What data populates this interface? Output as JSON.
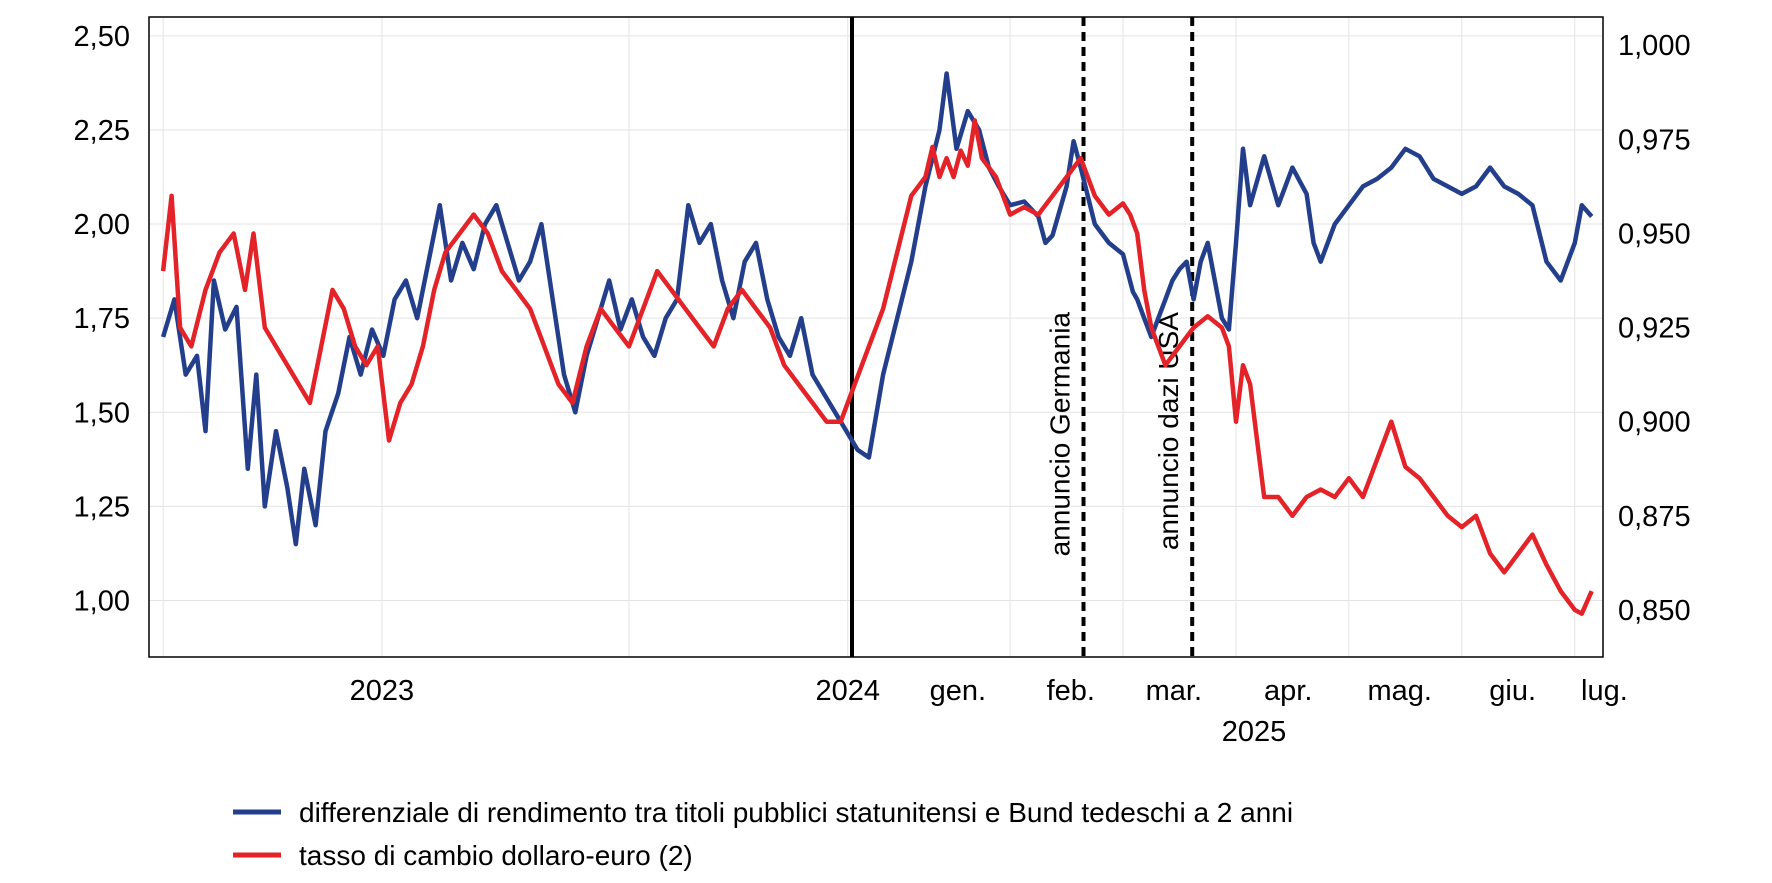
{
  "chart_data": {
    "type": "line",
    "y_left": {
      "ticks": [
        "1,00",
        "1,25",
        "1,50",
        "1,75",
        "2,00",
        "2,25",
        "2,50"
      ],
      "tick_values": [
        1.0,
        1.25,
        1.5,
        1.75,
        2.0,
        2.25,
        2.5
      ],
      "ylim": [
        0.85,
        2.55
      ]
    },
    "y_right": {
      "ticks": [
        "0,850",
        "0,875",
        "0,900",
        "0,925",
        "0,950",
        "0,975",
        "1,000"
      ],
      "tick_values": [
        0.85,
        0.875,
        0.9,
        0.925,
        0.95,
        0.975,
        1.0
      ],
      "ylim": [
        0.8375,
        1.0075
      ]
    },
    "x_ticks_weekly": [
      {
        "label": "2023",
        "pos": 0.155
      },
      {
        "label": "2024",
        "pos": 0.485
      }
    ],
    "x_ticks_daily": [
      {
        "label": "gen.",
        "pos": 0.563
      },
      {
        "label": "feb.",
        "pos": 0.643
      },
      {
        "label": "mar.",
        "pos": 0.716
      },
      {
        "label": "apr.",
        "pos": 0.797
      },
      {
        "label": "mag.",
        "pos": 0.876
      },
      {
        "label": "giu.",
        "pos": 0.956
      },
      {
        "label": "lug.",
        "pos": 1.021
      }
    ],
    "x_year_label": "2025",
    "annotations": [
      {
        "label": "annuncio Germania",
        "pos": 0.652
      },
      {
        "label": "annuncio dazi USA",
        "pos": 0.729
      }
    ],
    "section_break_pos": 0.488,
    "x_domain": [
      -0.01,
      1.02
    ],
    "series": [
      {
        "name": "differenziale di rendimento tra titoli pubblici statunitensi e Bund tedeschi a 2 anni",
        "axis": "left",
        "color": "#233e8b",
        "points": [
          [
            0.0,
            1.7
          ],
          [
            0.008,
            1.8
          ],
          [
            0.016,
            1.6
          ],
          [
            0.024,
            1.65
          ],
          [
            0.03,
            1.45
          ],
          [
            0.036,
            1.85
          ],
          [
            0.044,
            1.72
          ],
          [
            0.052,
            1.78
          ],
          [
            0.06,
            1.35
          ],
          [
            0.066,
            1.6
          ],
          [
            0.072,
            1.25
          ],
          [
            0.08,
            1.45
          ],
          [
            0.088,
            1.3
          ],
          [
            0.094,
            1.15
          ],
          [
            0.1,
            1.35
          ],
          [
            0.108,
            1.2
          ],
          [
            0.115,
            1.45
          ],
          [
            0.124,
            1.55
          ],
          [
            0.132,
            1.7
          ],
          [
            0.14,
            1.6
          ],
          [
            0.148,
            1.72
          ],
          [
            0.156,
            1.65
          ],
          [
            0.164,
            1.8
          ],
          [
            0.172,
            1.85
          ],
          [
            0.18,
            1.75
          ],
          [
            0.188,
            1.9
          ],
          [
            0.196,
            2.05
          ],
          [
            0.204,
            1.85
          ],
          [
            0.212,
            1.95
          ],
          [
            0.22,
            1.88
          ],
          [
            0.228,
            2.0
          ],
          [
            0.236,
            2.05
          ],
          [
            0.244,
            1.95
          ],
          [
            0.252,
            1.85
          ],
          [
            0.26,
            1.9
          ],
          [
            0.268,
            2.0
          ],
          [
            0.276,
            1.8
          ],
          [
            0.284,
            1.6
          ],
          [
            0.292,
            1.5
          ],
          [
            0.3,
            1.65
          ],
          [
            0.308,
            1.75
          ],
          [
            0.316,
            1.85
          ],
          [
            0.324,
            1.72
          ],
          [
            0.332,
            1.8
          ],
          [
            0.34,
            1.7
          ],
          [
            0.348,
            1.65
          ],
          [
            0.356,
            1.75
          ],
          [
            0.364,
            1.8
          ],
          [
            0.372,
            2.05
          ],
          [
            0.38,
            1.95
          ],
          [
            0.388,
            2.0
          ],
          [
            0.396,
            1.85
          ],
          [
            0.404,
            1.75
          ],
          [
            0.412,
            1.9
          ],
          [
            0.42,
            1.95
          ],
          [
            0.428,
            1.8
          ],
          [
            0.436,
            1.7
          ],
          [
            0.444,
            1.65
          ],
          [
            0.452,
            1.75
          ],
          [
            0.46,
            1.6
          ],
          [
            0.468,
            1.55
          ],
          [
            0.476,
            1.5
          ],
          [
            0.484,
            1.45
          ],
          [
            0.492,
            1.4
          ],
          [
            0.5,
            1.38
          ],
          [
            0.51,
            1.6
          ],
          [
            0.52,
            1.75
          ],
          [
            0.53,
            1.9
          ],
          [
            0.54,
            2.1
          ],
          [
            0.55,
            2.25
          ],
          [
            0.555,
            2.4
          ],
          [
            0.562,
            2.2
          ],
          [
            0.57,
            2.3
          ],
          [
            0.578,
            2.25
          ],
          [
            0.585,
            2.15
          ],
          [
            0.592,
            2.1
          ],
          [
            0.6,
            2.05
          ],
          [
            0.61,
            2.06
          ],
          [
            0.62,
            2.02
          ],
          [
            0.625,
            1.95
          ],
          [
            0.63,
            1.97
          ],
          [
            0.64,
            2.1
          ],
          [
            0.645,
            2.22
          ],
          [
            0.65,
            2.15
          ],
          [
            0.66,
            2.0
          ],
          [
            0.67,
            1.95
          ],
          [
            0.68,
            1.92
          ],
          [
            0.687,
            1.82
          ],
          [
            0.69,
            1.8
          ],
          [
            0.695,
            1.75
          ],
          [
            0.7,
            1.7
          ],
          [
            0.705,
            1.75
          ],
          [
            0.71,
            1.8
          ],
          [
            0.715,
            1.85
          ],
          [
            0.72,
            1.88
          ],
          [
            0.725,
            1.9
          ],
          [
            0.73,
            1.8
          ],
          [
            0.735,
            1.9
          ],
          [
            0.74,
            1.95
          ],
          [
            0.745,
            1.85
          ],
          [
            0.75,
            1.75
          ],
          [
            0.755,
            1.72
          ],
          [
            0.76,
            1.95
          ],
          [
            0.765,
            2.2
          ],
          [
            0.77,
            2.05
          ],
          [
            0.78,
            2.18
          ],
          [
            0.79,
            2.05
          ],
          [
            0.8,
            2.15
          ],
          [
            0.81,
            2.08
          ],
          [
            0.815,
            1.95
          ],
          [
            0.82,
            1.9
          ],
          [
            0.83,
            2.0
          ],
          [
            0.84,
            2.05
          ],
          [
            0.85,
            2.1
          ],
          [
            0.86,
            2.12
          ],
          [
            0.87,
            2.15
          ],
          [
            0.88,
            2.2
          ],
          [
            0.89,
            2.18
          ],
          [
            0.9,
            2.12
          ],
          [
            0.91,
            2.1
          ],
          [
            0.92,
            2.08
          ],
          [
            0.93,
            2.1
          ],
          [
            0.94,
            2.15
          ],
          [
            0.95,
            2.1
          ],
          [
            0.96,
            2.08
          ],
          [
            0.97,
            2.05
          ],
          [
            0.98,
            1.9
          ],
          [
            0.99,
            1.85
          ],
          [
            1.0,
            1.95
          ],
          [
            1.005,
            2.05
          ],
          [
            1.012,
            2.02
          ]
        ]
      },
      {
        "name": "tasso di cambio dollaro-euro (2)",
        "axis": "right",
        "color": "#e42328",
        "points": [
          [
            0.0,
            0.94
          ],
          [
            0.006,
            0.96
          ],
          [
            0.012,
            0.925
          ],
          [
            0.02,
            0.92
          ],
          [
            0.03,
            0.935
          ],
          [
            0.04,
            0.945
          ],
          [
            0.05,
            0.95
          ],
          [
            0.058,
            0.935
          ],
          [
            0.064,
            0.95
          ],
          [
            0.072,
            0.925
          ],
          [
            0.08,
            0.92
          ],
          [
            0.088,
            0.915
          ],
          [
            0.096,
            0.91
          ],
          [
            0.104,
            0.905
          ],
          [
            0.112,
            0.92
          ],
          [
            0.12,
            0.935
          ],
          [
            0.128,
            0.93
          ],
          [
            0.136,
            0.92
          ],
          [
            0.144,
            0.915
          ],
          [
            0.152,
            0.92
          ],
          [
            0.16,
            0.895
          ],
          [
            0.168,
            0.905
          ],
          [
            0.176,
            0.91
          ],
          [
            0.184,
            0.92
          ],
          [
            0.192,
            0.935
          ],
          [
            0.2,
            0.945
          ],
          [
            0.21,
            0.95
          ],
          [
            0.22,
            0.955
          ],
          [
            0.23,
            0.95
          ],
          [
            0.24,
            0.94
          ],
          [
            0.25,
            0.935
          ],
          [
            0.26,
            0.93
          ],
          [
            0.27,
            0.92
          ],
          [
            0.28,
            0.91
          ],
          [
            0.29,
            0.905
          ],
          [
            0.3,
            0.92
          ],
          [
            0.31,
            0.93
          ],
          [
            0.32,
            0.925
          ],
          [
            0.33,
            0.92
          ],
          [
            0.34,
            0.93
          ],
          [
            0.35,
            0.94
          ],
          [
            0.36,
            0.935
          ],
          [
            0.37,
            0.93
          ],
          [
            0.38,
            0.925
          ],
          [
            0.39,
            0.92
          ],
          [
            0.4,
            0.93
          ],
          [
            0.41,
            0.935
          ],
          [
            0.42,
            0.93
          ],
          [
            0.43,
            0.925
          ],
          [
            0.44,
            0.915
          ],
          [
            0.45,
            0.91
          ],
          [
            0.46,
            0.905
          ],
          [
            0.47,
            0.9
          ],
          [
            0.48,
            0.9
          ],
          [
            0.49,
            0.91
          ],
          [
            0.5,
            0.92
          ],
          [
            0.51,
            0.93
          ],
          [
            0.52,
            0.945
          ],
          [
            0.53,
            0.96
          ],
          [
            0.54,
            0.965
          ],
          [
            0.545,
            0.973
          ],
          [
            0.55,
            0.965
          ],
          [
            0.555,
            0.97
          ],
          [
            0.56,
            0.965
          ],
          [
            0.565,
            0.972
          ],
          [
            0.57,
            0.968
          ],
          [
            0.575,
            0.98
          ],
          [
            0.58,
            0.97
          ],
          [
            0.59,
            0.965
          ],
          [
            0.6,
            0.955
          ],
          [
            0.61,
            0.957
          ],
          [
            0.62,
            0.955
          ],
          [
            0.63,
            0.96
          ],
          [
            0.64,
            0.965
          ],
          [
            0.65,
            0.97
          ],
          [
            0.66,
            0.96
          ],
          [
            0.67,
            0.955
          ],
          [
            0.68,
            0.958
          ],
          [
            0.685,
            0.955
          ],
          [
            0.69,
            0.95
          ],
          [
            0.695,
            0.935
          ],
          [
            0.7,
            0.925
          ],
          [
            0.705,
            0.92
          ],
          [
            0.71,
            0.915
          ],
          [
            0.72,
            0.92
          ],
          [
            0.73,
            0.925
          ],
          [
            0.74,
            0.928
          ],
          [
            0.75,
            0.925
          ],
          [
            0.755,
            0.92
          ],
          [
            0.76,
            0.9
          ],
          [
            0.765,
            0.915
          ],
          [
            0.77,
            0.91
          ],
          [
            0.775,
            0.895
          ],
          [
            0.78,
            0.88
          ],
          [
            0.79,
            0.88
          ],
          [
            0.8,
            0.875
          ],
          [
            0.81,
            0.88
          ],
          [
            0.82,
            0.882
          ],
          [
            0.83,
            0.88
          ],
          [
            0.84,
            0.885
          ],
          [
            0.85,
            0.88
          ],
          [
            0.86,
            0.89
          ],
          [
            0.87,
            0.9
          ],
          [
            0.88,
            0.888
          ],
          [
            0.89,
            0.885
          ],
          [
            0.9,
            0.88
          ],
          [
            0.91,
            0.875
          ],
          [
            0.92,
            0.872
          ],
          [
            0.93,
            0.875
          ],
          [
            0.94,
            0.865
          ],
          [
            0.95,
            0.86
          ],
          [
            0.96,
            0.865
          ],
          [
            0.97,
            0.87
          ],
          [
            0.98,
            0.862
          ],
          [
            0.99,
            0.855
          ],
          [
            1.0,
            0.85
          ],
          [
            1.005,
            0.849
          ],
          [
            1.012,
            0.855
          ]
        ]
      }
    ]
  }
}
